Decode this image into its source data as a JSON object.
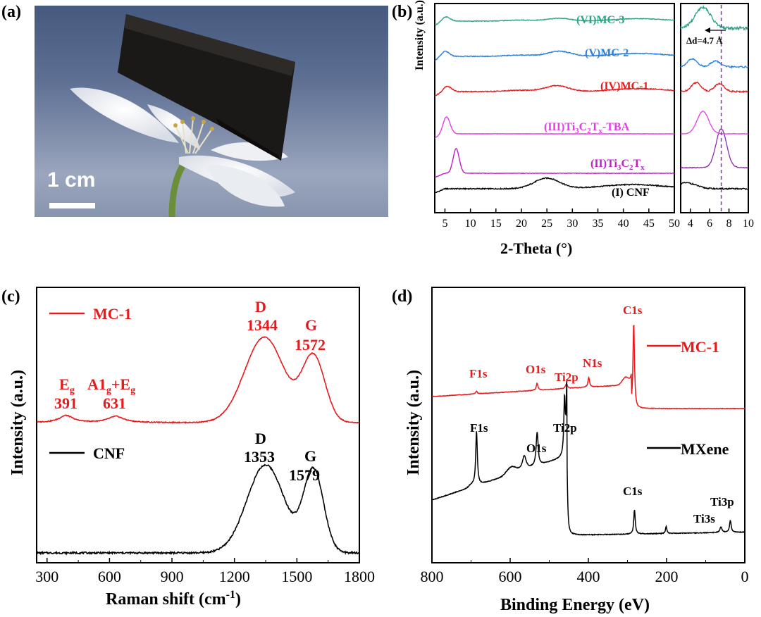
{
  "panels": {
    "a": {
      "label": "(a)",
      "scale_bar_text": "1 cm"
    },
    "b": {
      "label": "(b)"
    },
    "c": {
      "label": "(c)"
    },
    "d": {
      "label": "(d)"
    }
  },
  "colors": {
    "black": "#000000",
    "red": "#e8191b",
    "magenta": "#c21fc7",
    "purple": "#9c2fb4",
    "blue": "#2b80d9",
    "teal": "#2ea386",
    "green": "#1fa683",
    "bg_photo": "#5b6d90"
  },
  "chart_data": [
    {
      "id": "b-main",
      "type": "line",
      "xlabel": "2-Theta (°)",
      "ylabel": "Intensity (a.u.)",
      "xlim": [
        3,
        50
      ],
      "xticks": [
        5,
        10,
        15,
        20,
        25,
        30,
        35,
        40,
        45,
        50
      ],
      "series": [
        {
          "name": "(I) CNF",
          "color": "#000000",
          "peaks": [
            [
              25,
              1.0
            ]
          ]
        },
        {
          "name": "(II) Ti3C2Tx",
          "label_main": "(II)Ti",
          "sub1": "3",
          "mid": "C",
          "sub2": "2",
          "end": "T",
          "sub3": "x",
          "color": "#c21fc7",
          "peaks": [
            [
              7.2,
              1.0
            ]
          ]
        },
        {
          "name": "(III) Ti3C2Tx-TBA",
          "label_main": "(III)Ti",
          "sub1": "3",
          "mid": "C",
          "sub2": "2",
          "end": "T",
          "sub3": "x",
          "tail": "-TBA",
          "color": "#e53de6",
          "peaks": [
            [
              5.3,
              1.0
            ]
          ]
        },
        {
          "name": "(IV) MC-1",
          "label": "(IV)MC-1",
          "color": "#e8191b",
          "peaks": [
            [
              5.5,
              0.6
            ],
            [
              27,
              0.7
            ]
          ]
        },
        {
          "name": "(V) MC-2",
          "label": "(V)MC-2",
          "color": "#2b80d9",
          "peaks": [
            [
              5.0,
              0.6
            ],
            [
              27.5,
              0.6
            ]
          ]
        },
        {
          "name": "(VI) MC-3",
          "label": "(VI)MC-3",
          "color": "#2ea386",
          "peaks": [
            [
              5.2,
              0.6
            ],
            [
              27.5,
              0.4
            ]
          ]
        }
      ]
    },
    {
      "id": "b-inset",
      "type": "line",
      "xlim": [
        3,
        10
      ],
      "xticks": [
        4,
        6,
        8,
        10
      ],
      "annotation": "Δd=4.7 Å",
      "reference_line_x": 7.2
    },
    {
      "id": "c",
      "type": "line",
      "xlabel": "Raman shift (cm",
      "xlabel_sup": "-1",
      "xlabel_end": ")",
      "ylabel": "Intensity (a.u.)",
      "xlim": [
        250,
        1800
      ],
      "xticks": [
        300,
        600,
        900,
        1200,
        1500,
        1800
      ],
      "legend": [
        {
          "name": "MC-1",
          "color": "#e8191b"
        },
        {
          "name": "CNF",
          "color": "#000000"
        }
      ],
      "series": [
        {
          "name": "MC-1",
          "color": "#e8191b",
          "peaks": [
            [
              391,
              0.08
            ],
            [
              631,
              0.07
            ],
            [
              1344,
              1.0
            ],
            [
              1572,
              0.8
            ]
          ]
        },
        {
          "name": "CNF",
          "color": "#000000",
          "peaks": [
            [
              1353,
              1.0
            ],
            [
              1579,
              0.92
            ]
          ]
        }
      ],
      "annotations": {
        "mc1_D_letter": "D",
        "mc1_D_val": "1344",
        "mc1_G_letter": "G",
        "mc1_G_val": "1572",
        "mc1_Eg_main": "E",
        "mc1_Eg_sub": "g",
        "mc1_Eg_val": "391",
        "mc1_A1g_main": "A1",
        "mc1_A1g_sub": "g",
        "mc1_A1g_plus": "+E",
        "mc1_A1g_sub2": "g",
        "mc1_A1g_val": "631",
        "cnf_D_letter": "D",
        "cnf_D_val": "1353",
        "cnf_G_letter": "G",
        "cnf_G_val": "1579"
      }
    },
    {
      "id": "d",
      "type": "line",
      "xlabel": "Binding Energy (eV)",
      "ylabel": "Intensity (a.u.)",
      "xlim": [
        800,
        0
      ],
      "xticks": [
        800,
        600,
        400,
        200,
        0
      ],
      "legend": [
        {
          "name": "MC-1",
          "color": "#e8191b"
        },
        {
          "name": "MXene",
          "color": "#000000"
        }
      ],
      "series": [
        {
          "name": "MC-1",
          "color": "#e8191b",
          "peaks_eV": {
            "F1s": 686,
            "O1s": 531,
            "Ti2p": 456,
            "N1s": 399,
            "C1s": 284
          }
        },
        {
          "name": "MXene",
          "color": "#000000",
          "peaks_eV": {
            "F1s": 686,
            "O1s": 531,
            "Ti2p": 456,
            "C1s": 282,
            "Ti3s": 61,
            "Ti3p": 37
          }
        }
      ],
      "annotations": {
        "mc1_F1s": "F1s",
        "mc1_O1s": "O1s",
        "mc1_Ti2p": "Ti2p",
        "mc1_N1s": "N1s",
        "mc1_C1s": "C1s",
        "mx_F1s": "F1s",
        "mx_O1s": "O1s",
        "mx_Ti2p": "Ti2p",
        "mx_C1s": "C1s",
        "mx_Ti3s": "Ti3s",
        "mx_Ti3p": "Ti3p"
      }
    }
  ]
}
